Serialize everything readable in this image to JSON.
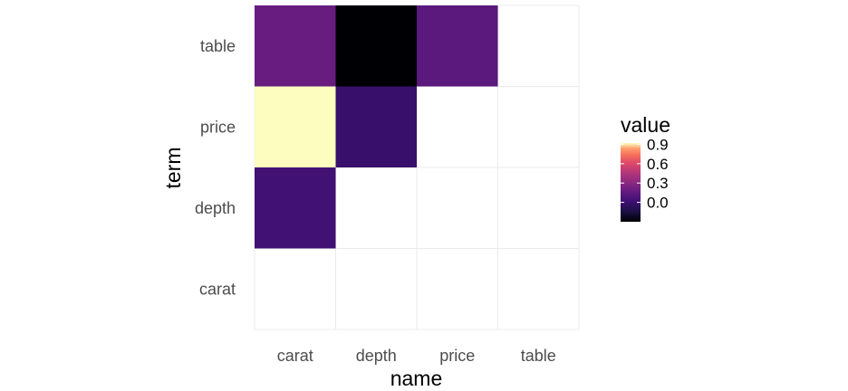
{
  "chart_data": {
    "type": "heatmap",
    "xlabel": "name",
    "ylabel": "term",
    "x_categories": [
      "carat",
      "depth",
      "price",
      "table"
    ],
    "y_categories": [
      "carat",
      "depth",
      "price",
      "table"
    ],
    "cells": [
      {
        "x": "carat",
        "y": "depth",
        "value": 0.03
      },
      {
        "x": "carat",
        "y": "price",
        "value": 0.92
      },
      {
        "x": "carat",
        "y": "table",
        "value": 0.18
      },
      {
        "x": "depth",
        "y": "price",
        "value": -0.01
      },
      {
        "x": "depth",
        "y": "table",
        "value": -0.3
      },
      {
        "x": "price",
        "y": "table",
        "value": 0.13
      }
    ],
    "legend": {
      "title": "value",
      "position": "right",
      "ticks": [
        0.9,
        0.6,
        0.3,
        0.0
      ],
      "tick_labels": [
        "0.9",
        "0.6",
        "0.3",
        "0.0"
      ],
      "limits": [
        -0.3,
        0.92
      ],
      "palette": "magma"
    },
    "grid": true
  }
}
